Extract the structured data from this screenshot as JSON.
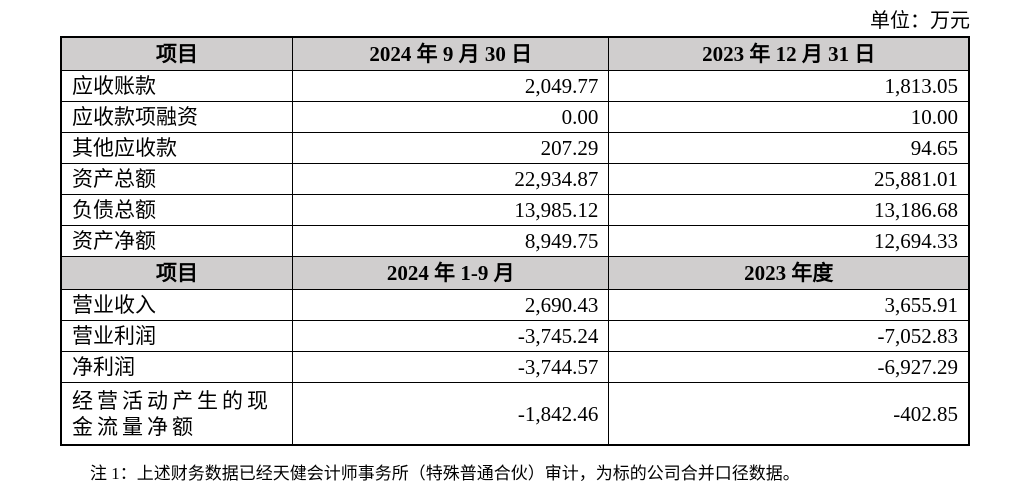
{
  "unit": "单位：万元",
  "table": {
    "sections": [
      {
        "header": [
          "项目",
          "2024 年 9 月 30 日",
          "2023 年 12 月 31 日"
        ],
        "rows": [
          [
            "应收账款",
            "2,049.77",
            "1,813.05"
          ],
          [
            "应收款项融资",
            "0.00",
            "10.00"
          ],
          [
            "其他应收款",
            "207.29",
            "94.65"
          ],
          [
            "资产总额",
            "22,934.87",
            "25,881.01"
          ],
          [
            "负债总额",
            "13,985.12",
            "13,186.68"
          ],
          [
            "资产净额",
            "8,949.75",
            "12,694.33"
          ]
        ]
      },
      {
        "header": [
          "项目",
          "2024 年 1-9 月",
          "2023 年度"
        ],
        "rows": [
          [
            "营业收入",
            "2,690.43",
            "3,655.91"
          ],
          [
            "营业利润",
            "-3,745.24",
            "-7,052.83"
          ],
          [
            "净利润",
            "-3,744.57",
            "-6,927.29"
          ],
          [
            "经营活动产生的现金流量净额",
            "-1,842.46",
            "-402.85"
          ]
        ]
      }
    ]
  },
  "note": "注 1：上述财务数据已经天健会计师事务所（特殊普通合伙）审计，为标的公司合并口径数据。"
}
